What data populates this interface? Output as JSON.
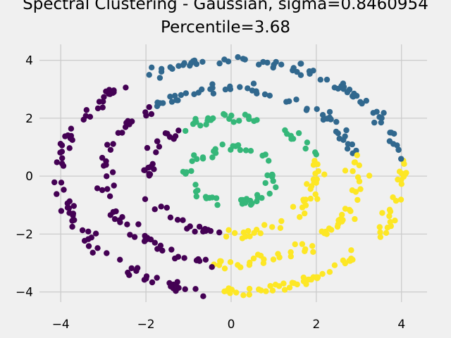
{
  "chart_data": {
    "type": "scatter",
    "title_line1": "Spectral Clustering - Gaussian, sigma=0.8460954",
    "title_line2": "Percentile=3.68",
    "xlabel": "",
    "ylabel": "",
    "xlim": [
      -4.5,
      4.6
    ],
    "ylim": [
      -4.35,
      4.55
    ],
    "xticks": [
      -4,
      -2,
      0,
      2,
      4
    ],
    "yticks": [
      -4,
      -2,
      0,
      2,
      4
    ],
    "xtick_labels": [
      "−4",
      "−2",
      "0",
      "2",
      "4"
    ],
    "ytick_labels": [
      "−4",
      "−2",
      "0",
      "2",
      "4"
    ],
    "grid": true,
    "colors": {
      "purple": "#440154",
      "blue": "#31688e",
      "green": "#35b779",
      "yellow": "#fde725",
      "background": "#f0f0f0",
      "grid": "#cbcbcb"
    },
    "rings": [
      {
        "radius": 1.0,
        "description": "inner ring",
        "segments": [
          {
            "from": 0,
            "to": 360,
            "color": "green"
          }
        ]
      },
      {
        "radius": 2.0,
        "description": "second ring",
        "segments": [
          {
            "from": 20,
            "to": 125,
            "color": "green"
          },
          {
            "from": 125,
            "to": 262,
            "color": "purple"
          },
          {
            "from": 262,
            "to": 380,
            "color": "yellow"
          }
        ]
      },
      {
        "radius": 3.0,
        "description": "third ring",
        "segments": [
          {
            "from": 15,
            "to": 128,
            "color": "blue"
          },
          {
            "from": 128,
            "to": 262,
            "color": "purple"
          },
          {
            "from": 262,
            "to": 375,
            "color": "yellow"
          }
        ]
      },
      {
        "radius": 4.0,
        "description": "outer ring",
        "segments": [
          {
            "from": 8,
            "to": 128,
            "color": "blue"
          },
          {
            "from": 128,
            "to": 264,
            "color": "purple"
          },
          {
            "from": 264,
            "to": 368,
            "color": "yellow"
          }
        ]
      }
    ]
  }
}
